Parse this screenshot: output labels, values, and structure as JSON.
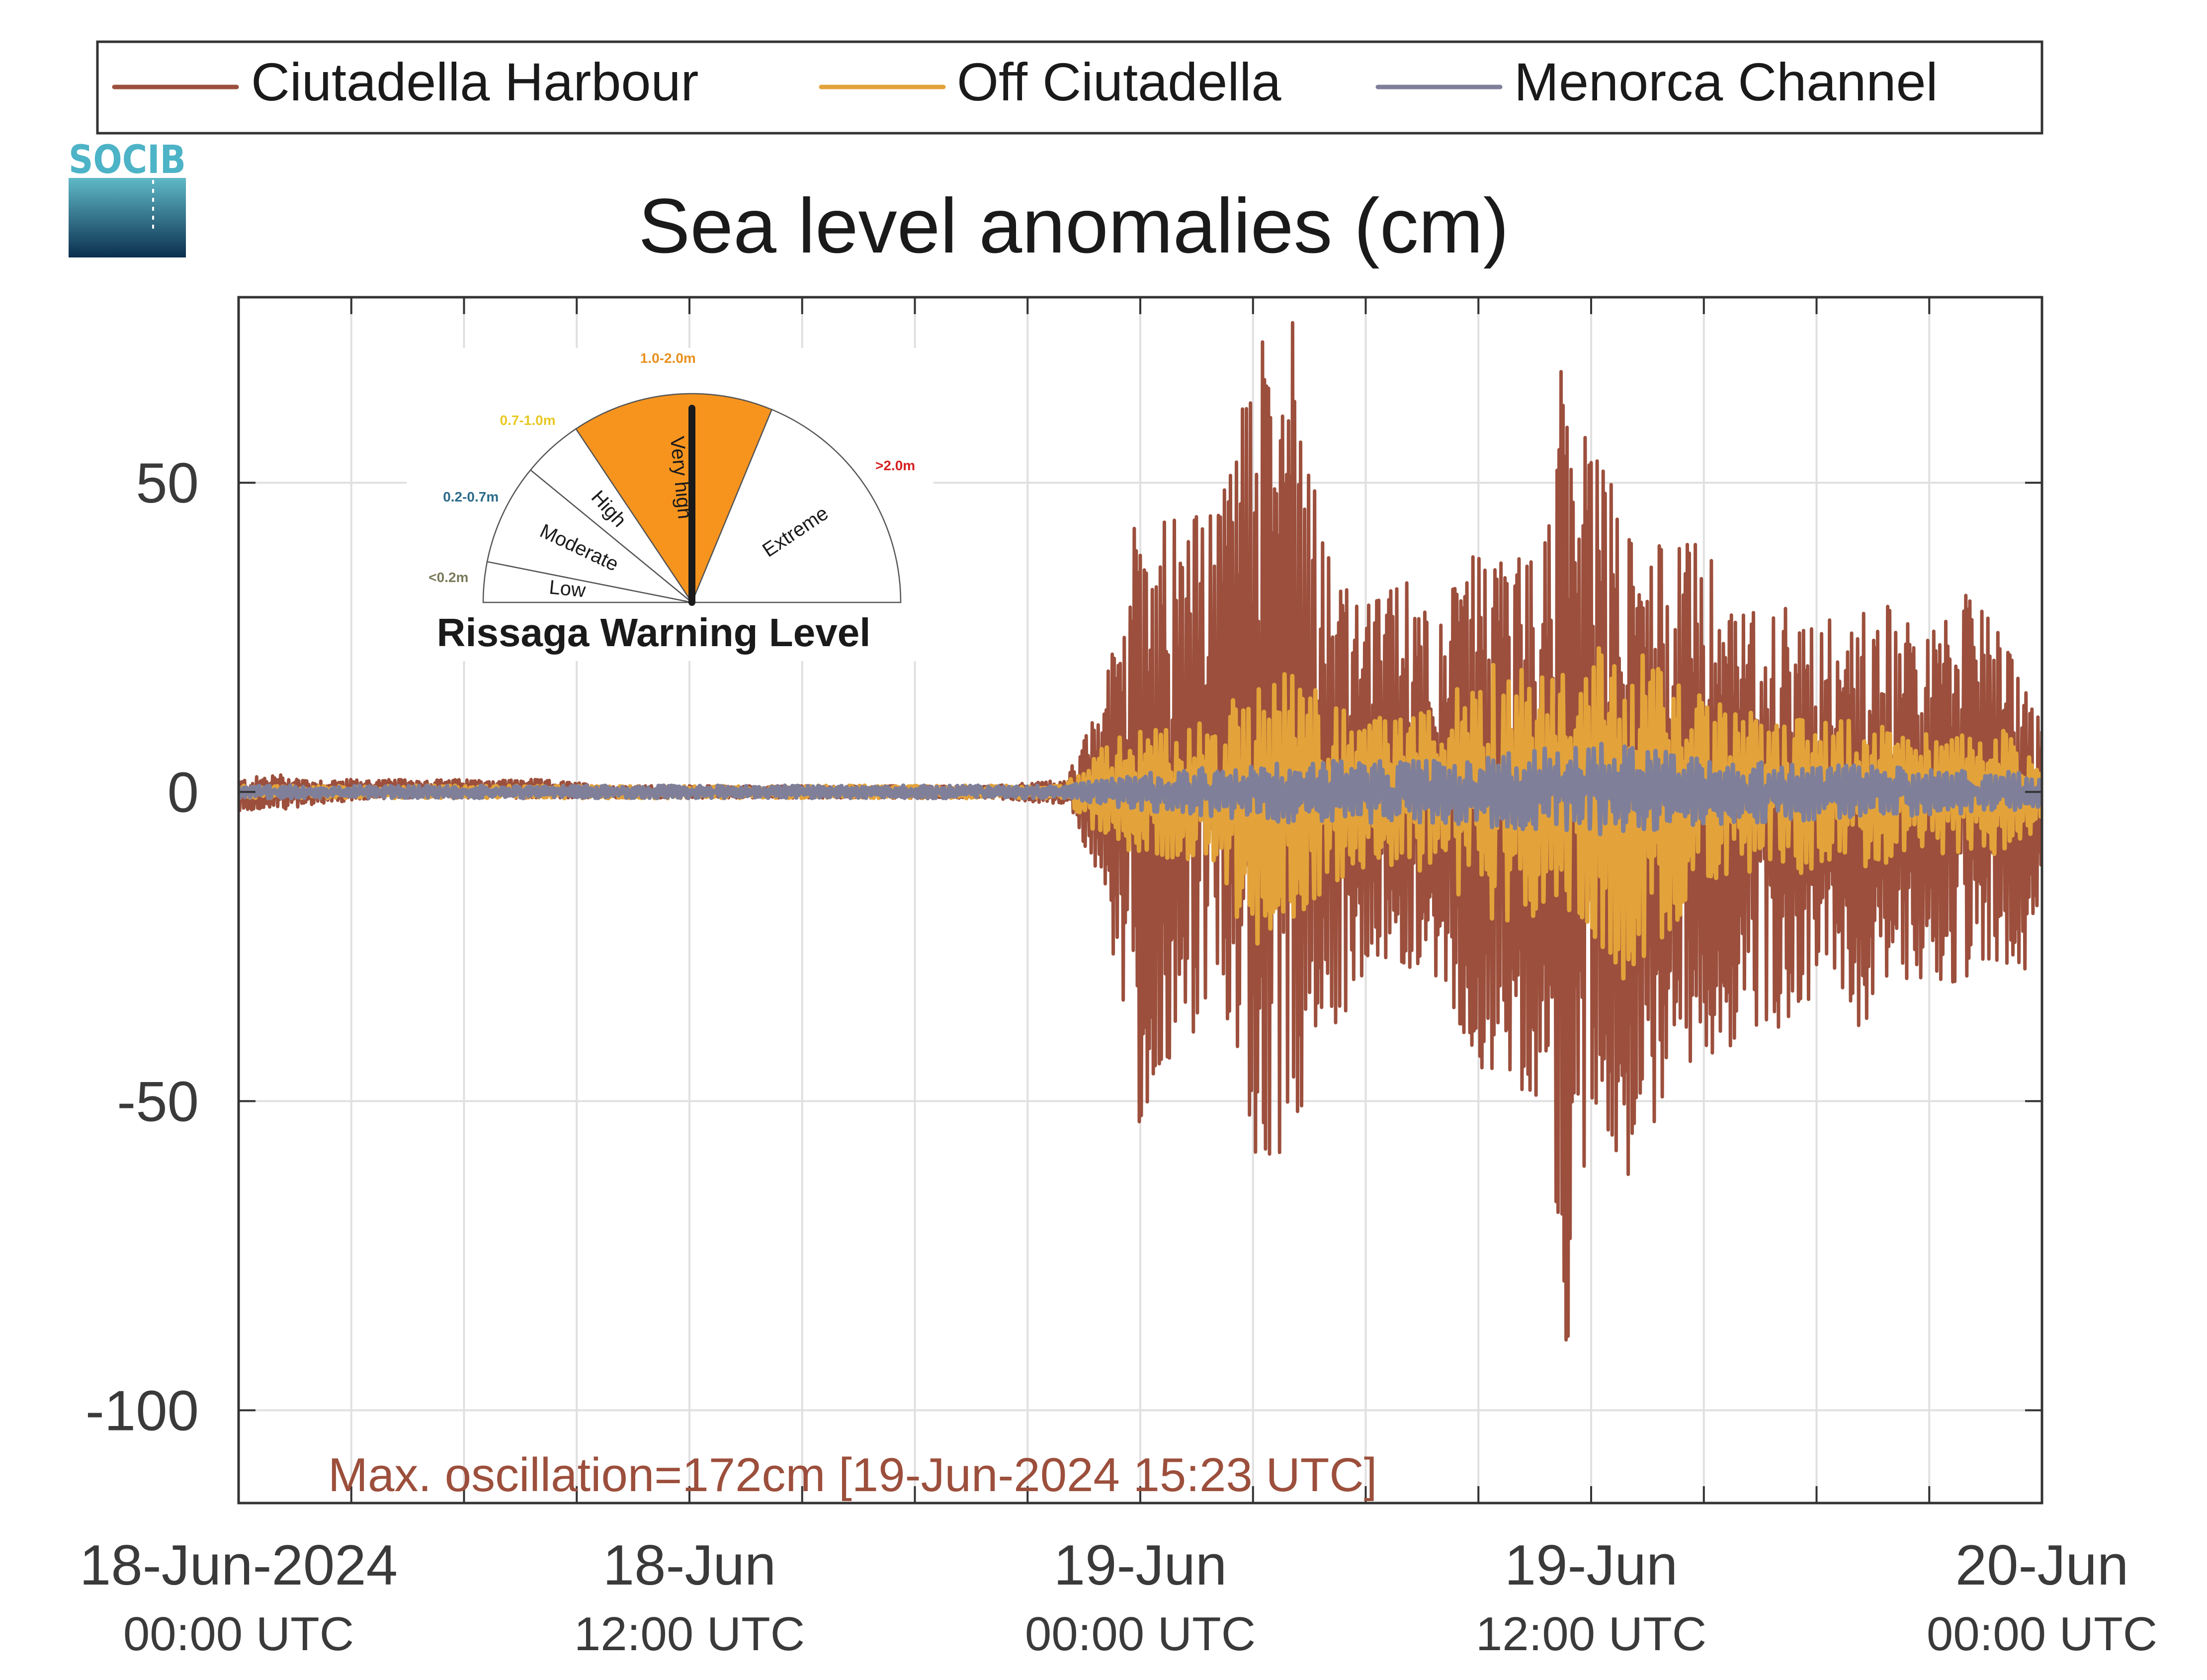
{
  "logo": {
    "text": "SOCIB"
  },
  "legend": {
    "items": [
      {
        "label": "Ciutadella Harbour",
        "color": "#9c4f3c"
      },
      {
        "label": "Off Ciutadella",
        "color": "#e3a33a"
      },
      {
        "label": "Menorca Channel",
        "color": "#7f7f9a"
      }
    ]
  },
  "chart_data": {
    "type": "line",
    "title": "Sea level anomalies (cm)",
    "xlabel": "",
    "ylabel": "",
    "x_range": [
      "2024-06-18 00:00 UTC",
      "2024-06-20 00:00 UTC"
    ],
    "ylim": [
      -115,
      80
    ],
    "yticks": [
      -100,
      -50,
      0,
      50
    ],
    "ytick_labels": [
      "-100",
      "-50",
      "0",
      "50"
    ],
    "xticks": [
      {
        "date": "18-Jun-2024",
        "time": "00:00 UTC"
      },
      {
        "date": "18-Jun",
        "time": "12:00 UTC"
      },
      {
        "date": "19-Jun",
        "time": "00:00 UTC"
      },
      {
        "date": "19-Jun",
        "time": "12:00 UTC"
      },
      {
        "date": "20-Jun",
        "time": "00:00 UTC"
      }
    ],
    "grid": true,
    "legend_position": "top",
    "series": [
      {
        "name": "Ciutadella Harbour",
        "color": "#9c4f3c",
        "x_hours": [
          0,
          1,
          2,
          4,
          6,
          8,
          10,
          12,
          14,
          16,
          18,
          20,
          22,
          23,
          24,
          25,
          26,
          27,
          28,
          29,
          29.3,
          30,
          31,
          32,
          33,
          34,
          35,
          35.2,
          36,
          37,
          38,
          39,
          40,
          41,
          42,
          43,
          44,
          45,
          46,
          47,
          47.5,
          48
        ],
        "envelope_min": [
          -3,
          -3,
          -2,
          -1,
          -1,
          -1,
          -1,
          -1,
          -1,
          -1,
          -1,
          -1,
          -2,
          -15,
          -55,
          -42,
          -35,
          -59,
          -58,
          -35,
          -40,
          -30,
          -28,
          -30,
          -45,
          -48,
          -52,
          -100,
          -50,
          -62,
          -50,
          -45,
          -40,
          -38,
          -33,
          -40,
          -30,
          -32,
          -30,
          -28,
          -30,
          -15
        ],
        "envelope_max": [
          2,
          3,
          2,
          2,
          2,
          2,
          1,
          1,
          1,
          1,
          1,
          1,
          2,
          15,
          50,
          44,
          45,
          73,
          78,
          38,
          35,
          30,
          35,
          30,
          40,
          38,
          45,
          72,
          57,
          45,
          40,
          40,
          30,
          30,
          28,
          30,
          30,
          26,
          32,
          25,
          20,
          10
        ]
      },
      {
        "name": "Off Ciutadella",
        "color": "#e3a33a",
        "x_hours": [
          0,
          12,
          22,
          23,
          24,
          25,
          26,
          27,
          28,
          29,
          30,
          31,
          32,
          33,
          34,
          35,
          36,
          37,
          38,
          39,
          40,
          41,
          42,
          43,
          44,
          45,
          46,
          47,
          48
        ],
        "envelope_min": [
          -1,
          -1,
          -1,
          -8,
          -10,
          -12,
          -12,
          -28,
          -25,
          -15,
          -12,
          -12,
          -14,
          -20,
          -22,
          -18,
          -25,
          -31,
          -24,
          -14,
          -14,
          -12,
          -14,
          -12,
          -12,
          -10,
          -10,
          -10,
          -6
        ],
        "envelope_max": [
          1,
          1,
          1,
          8,
          10,
          10,
          12,
          18,
          20,
          15,
          12,
          12,
          14,
          20,
          22,
          18,
          25,
          24,
          20,
          15,
          14,
          12,
          12,
          12,
          10,
          10,
          10,
          10,
          6
        ]
      },
      {
        "name": "Menorca Channel",
        "color": "#7f7f9a",
        "x_hours": [
          0,
          22,
          24,
          28,
          32,
          36,
          40,
          44,
          48
        ],
        "envelope_min": [
          -1,
          -1,
          -3,
          -5,
          -5,
          -7,
          -5,
          -4,
          -3
        ],
        "envelope_max": [
          1,
          1,
          3,
          5,
          5,
          8,
          5,
          4,
          3
        ]
      }
    ],
    "annotation": "Max. oscillation=172cm [19-Jun-2024 15:23 UTC]",
    "annotation_color": "#9c4f3c"
  },
  "gauge": {
    "title": "Rissaga Warning Level",
    "needle_value": 1.6,
    "sectors": [
      {
        "label": "Low",
        "range": "<0.2m",
        "range_color": "#7a7a5a",
        "fill": "#ffffff"
      },
      {
        "label": "Moderate",
        "range": "0.2-0.7m",
        "range_color": "#2c6b8a",
        "fill": "#ffffff"
      },
      {
        "label": "High",
        "range": "0.7-1.0m",
        "range_color": "#e8c823",
        "fill": "#ffffff"
      },
      {
        "label": "Very high",
        "range": "1.0-2.0m",
        "range_color": "#e8901f",
        "fill": "#f7941e"
      },
      {
        "label": "Extreme",
        "range": ">2.0m",
        "range_color": "#d42020",
        "fill": "#ffffff"
      }
    ]
  }
}
